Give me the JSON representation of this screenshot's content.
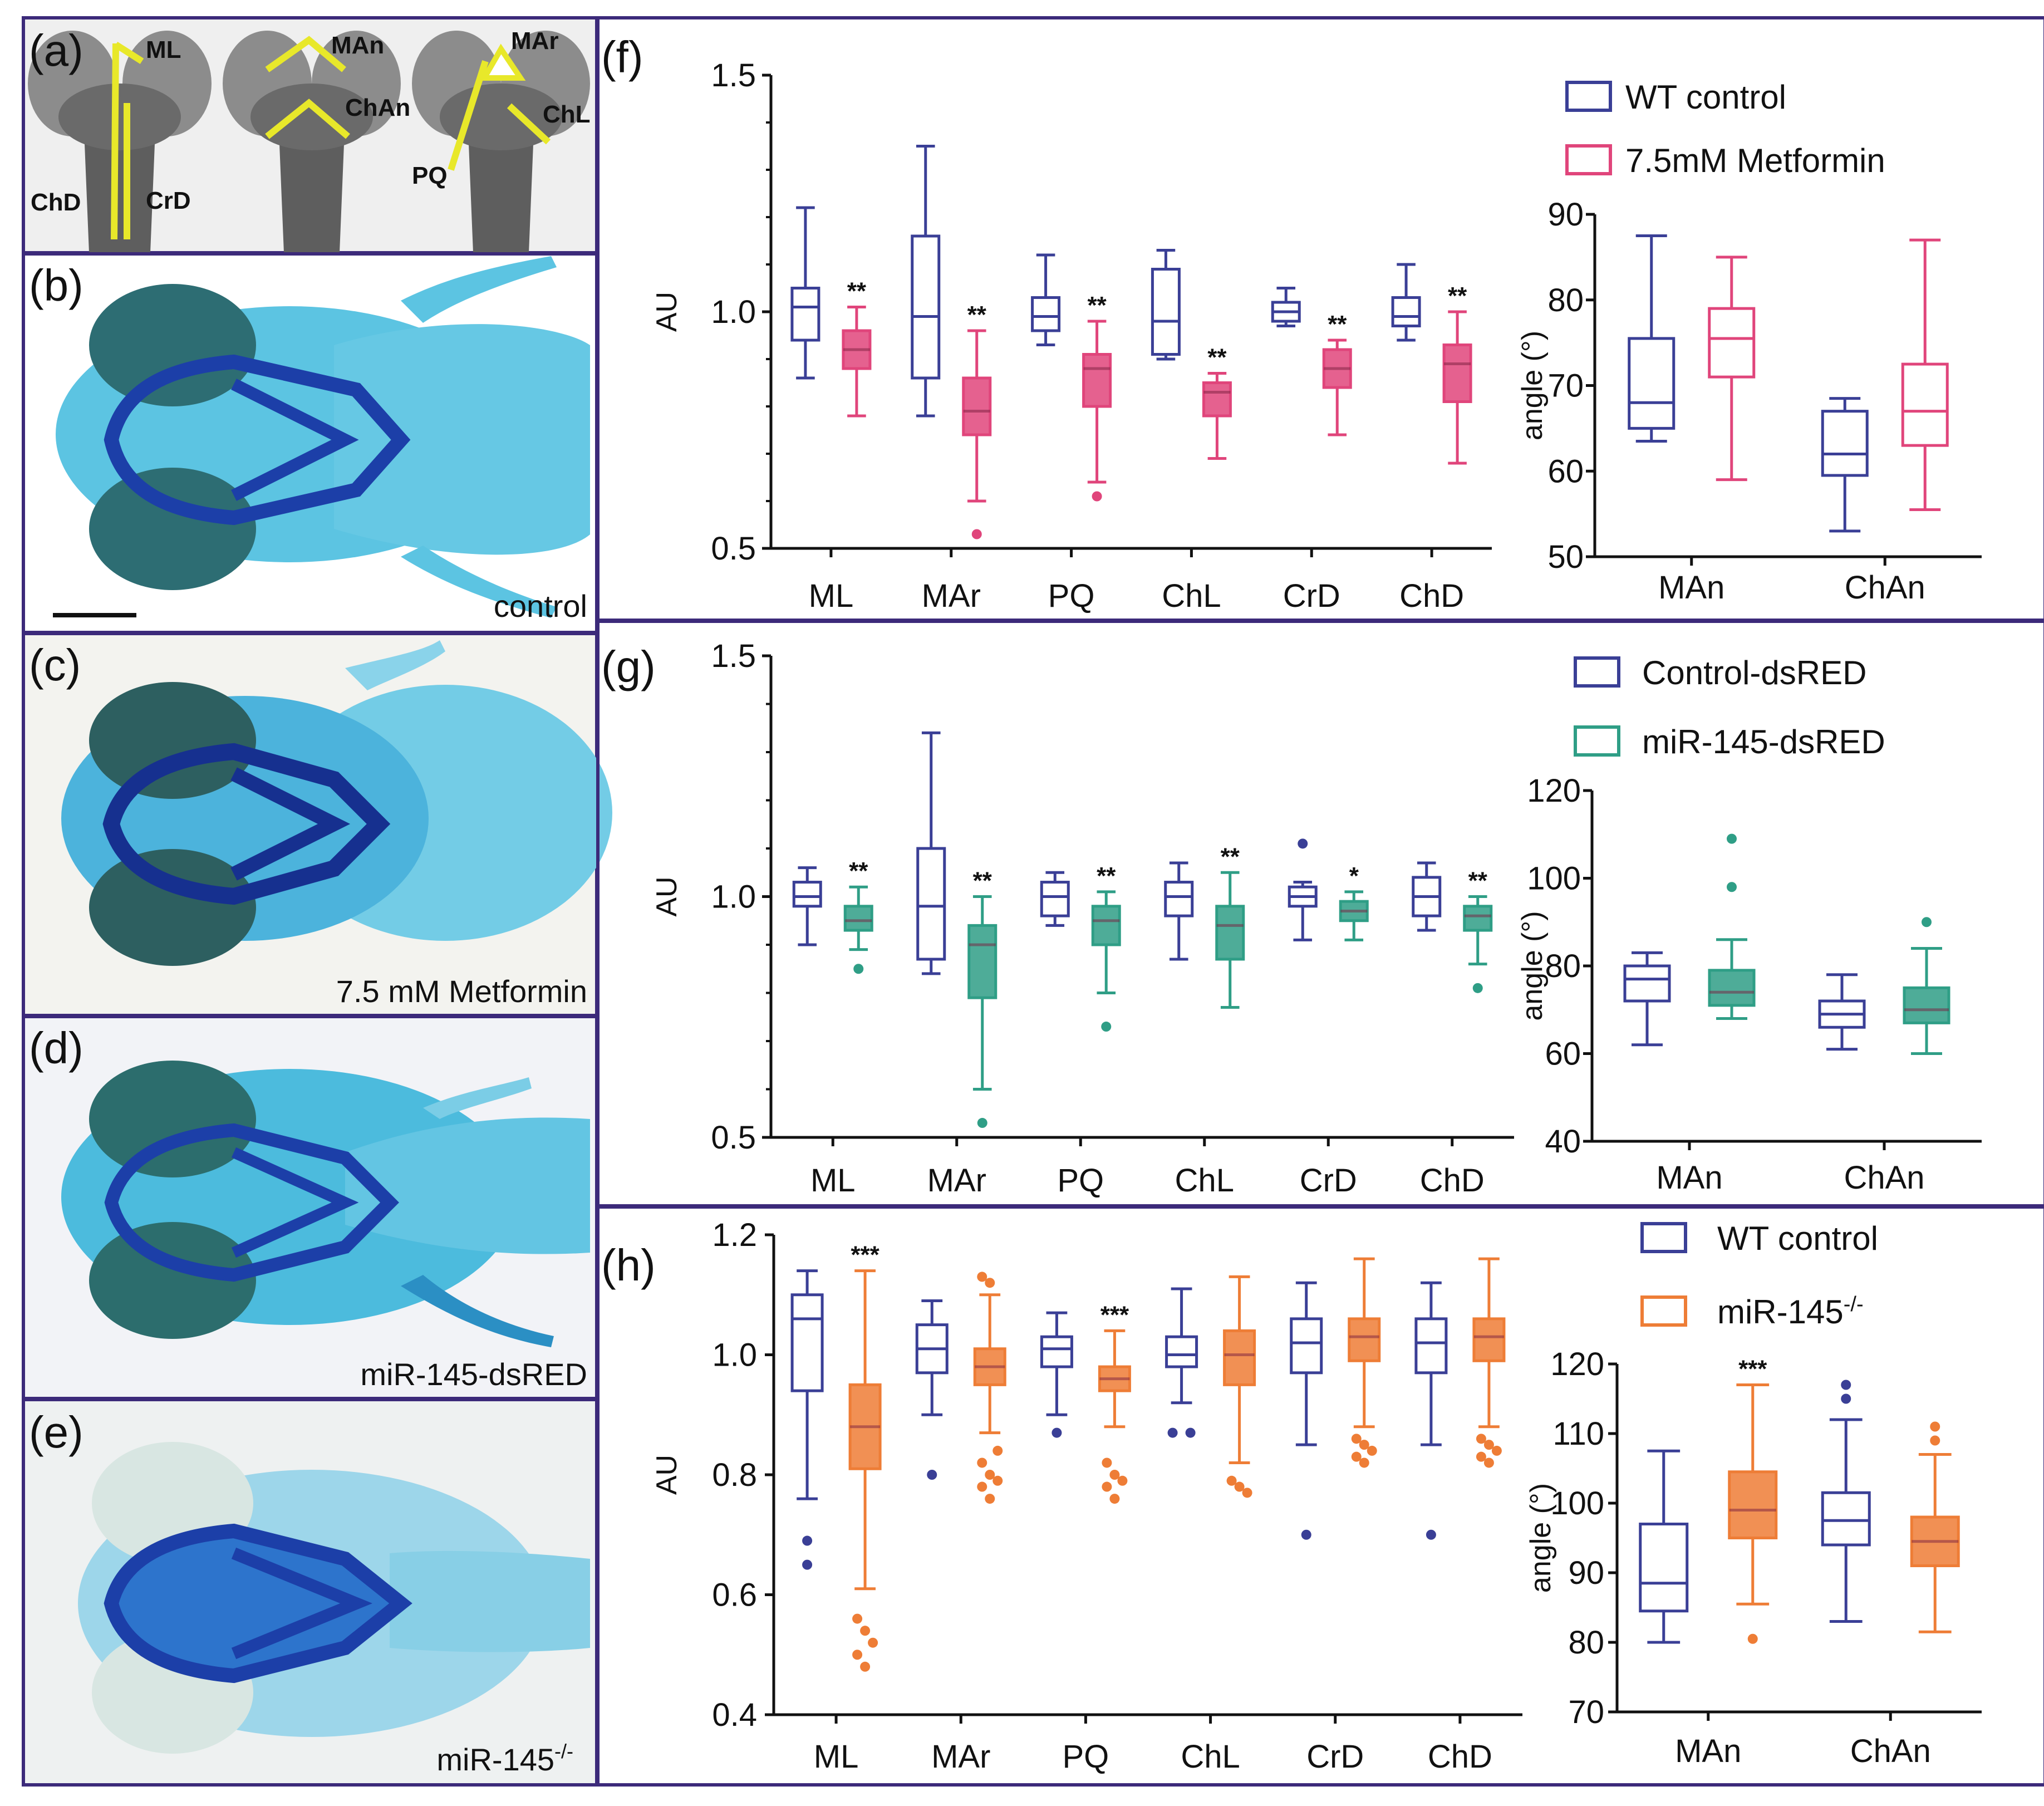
{
  "colors": {
    "navy": "#3a3f96",
    "pink": "#e0457b",
    "teal": "#2f9e86",
    "orange": "#ee7d36",
    "frame": "#3c2a7a",
    "cartilage": "#2ba6d6",
    "cartilageDark": "#1c3fa8"
  },
  "panels": {
    "a": {
      "label": "(a)",
      "jaw_labels": [
        "ML",
        "ChD",
        "CrD",
        "MAn",
        "ChAn",
        "MAr",
        "ChL",
        "PQ"
      ]
    },
    "b": {
      "label": "(b)",
      "caption": "control"
    },
    "c": {
      "label": "(c)",
      "caption": "7.5 mM Metformin"
    },
    "d": {
      "label": "(d)",
      "caption": "miR-145-dsRED"
    },
    "e": {
      "label": "(e)",
      "caption": "miR-145"
    }
  },
  "knockout_superscript": "-/-",
  "chart_data": [
    {
      "id": "f",
      "panel": "(f)",
      "type": "box",
      "categories": [
        "ML",
        "MAr",
        "PQ",
        "ChL",
        "CrD",
        "ChD"
      ],
      "ylabel": "AU",
      "ylim": [
        0.5,
        1.5
      ],
      "yticks": [
        "0.5",
        "1.0",
        "1.5"
      ],
      "legend": [
        "WT control",
        "7.5mM Metformin"
      ],
      "series": [
        {
          "name": "WT control",
          "boxes": [
            {
              "min": 0.86,
              "q1": 0.94,
              "med": 1.01,
              "q3": 1.05,
              "max": 1.22,
              "outliers": []
            },
            {
              "min": 0.78,
              "q1": 0.86,
              "med": 0.99,
              "q3": 1.16,
              "max": 1.35,
              "outliers": []
            },
            {
              "min": 0.93,
              "q1": 0.96,
              "med": 0.99,
              "q3": 1.03,
              "max": 1.12,
              "outliers": []
            },
            {
              "min": 0.9,
              "q1": 0.91,
              "med": 0.98,
              "q3": 1.09,
              "max": 1.13,
              "outliers": []
            },
            {
              "min": 0.97,
              "q1": 0.98,
              "med": 1.0,
              "q3": 1.02,
              "max": 1.05,
              "outliers": []
            },
            {
              "min": 0.94,
              "q1": 0.97,
              "med": 0.99,
              "q3": 1.03,
              "max": 1.1,
              "outliers": []
            }
          ]
        },
        {
          "name": "7.5mM Metformin",
          "boxes": [
            {
              "min": 0.78,
              "q1": 0.88,
              "med": 0.92,
              "q3": 0.96,
              "max": 1.01,
              "outliers": []
            },
            {
              "min": 0.6,
              "q1": 0.74,
              "med": 0.79,
              "q3": 0.86,
              "max": 0.96,
              "outliers": [
                0.53
              ]
            },
            {
              "min": 0.64,
              "q1": 0.8,
              "med": 0.88,
              "q3": 0.91,
              "max": 0.98,
              "outliers": [
                0.61
              ]
            },
            {
              "min": 0.69,
              "q1": 0.78,
              "med": 0.83,
              "q3": 0.85,
              "max": 0.87,
              "outliers": []
            },
            {
              "min": 0.74,
              "q1": 0.84,
              "med": 0.88,
              "q3": 0.92,
              "max": 0.94,
              "outliers": []
            },
            {
              "min": 0.68,
              "q1": 0.81,
              "med": 0.89,
              "q3": 0.93,
              "max": 1.0,
              "outliers": []
            }
          ]
        }
      ],
      "significance": [
        "**",
        "**",
        "**",
        "**",
        "**",
        "**"
      ]
    },
    {
      "id": "f-angle",
      "type": "box",
      "categories": [
        "MAn",
        "ChAn"
      ],
      "ylabel": "angle (°)",
      "ylim": [
        50,
        90
      ],
      "yticks": [
        "50",
        "60",
        "70",
        "80",
        "90"
      ],
      "series": [
        {
          "name": "WT control",
          "boxes": [
            {
              "min": 63.5,
              "q1": 65,
              "med": 68,
              "q3": 75.5,
              "max": 87.5,
              "outliers": []
            },
            {
              "min": 53,
              "q1": 59.5,
              "med": 62,
              "q3": 67,
              "max": 68.5,
              "outliers": []
            }
          ]
        },
        {
          "name": "7.5mM Metformin",
          "boxes": [
            {
              "min": 59,
              "q1": 71,
              "med": 75.5,
              "q3": 79,
              "max": 85,
              "outliers": []
            },
            {
              "min": 55.5,
              "q1": 63,
              "med": 67,
              "q3": 72.5,
              "max": 87,
              "outliers": []
            }
          ]
        }
      ],
      "significance": [
        "",
        ""
      ]
    },
    {
      "id": "g",
      "panel": "(g)",
      "type": "box",
      "categories": [
        "ML",
        "MAr",
        "PQ",
        "ChL",
        "CrD",
        "ChD"
      ],
      "ylabel": "AU",
      "ylim": [
        0.5,
        1.5
      ],
      "yticks": [
        "0.5",
        "1.0",
        "1.5"
      ],
      "legend": [
        "Control-dsRED",
        "miR-145-dsRED"
      ],
      "series": [
        {
          "name": "Control-dsRED",
          "boxes": [
            {
              "min": 0.9,
              "q1": 0.98,
              "med": 1.0,
              "q3": 1.03,
              "max": 1.06,
              "outliers": []
            },
            {
              "min": 0.84,
              "q1": 0.87,
              "med": 0.98,
              "q3": 1.1,
              "max": 1.34,
              "outliers": []
            },
            {
              "min": 0.94,
              "q1": 0.96,
              "med": 1.0,
              "q3": 1.03,
              "max": 1.05,
              "outliers": []
            },
            {
              "min": 0.87,
              "q1": 0.96,
              "med": 1.0,
              "q3": 1.03,
              "max": 1.07,
              "outliers": []
            },
            {
              "min": 0.91,
              "q1": 0.98,
              "med": 1.0,
              "q3": 1.02,
              "max": 1.03,
              "outliers": [
                1.11
              ]
            },
            {
              "min": 0.93,
              "q1": 0.96,
              "med": 1.0,
              "q3": 1.04,
              "max": 1.07,
              "outliers": []
            }
          ]
        },
        {
          "name": "miR-145-dsRED",
          "boxes": [
            {
              "min": 0.89,
              "q1": 0.93,
              "med": 0.95,
              "q3": 0.98,
              "max": 1.02,
              "outliers": [
                0.85
              ]
            },
            {
              "min": 0.6,
              "q1": 0.79,
              "med": 0.9,
              "q3": 0.94,
              "max": 1.0,
              "outliers": [
                0.53
              ]
            },
            {
              "min": 0.8,
              "q1": 0.9,
              "med": 0.95,
              "q3": 0.98,
              "max": 1.01,
              "outliers": [
                0.73
              ]
            },
            {
              "min": 0.77,
              "q1": 0.87,
              "med": 0.94,
              "q3": 0.98,
              "max": 1.05,
              "outliers": []
            },
            {
              "min": 0.91,
              "q1": 0.95,
              "med": 0.97,
              "q3": 0.99,
              "max": 1.01,
              "outliers": []
            },
            {
              "min": 0.86,
              "q1": 0.93,
              "med": 0.96,
              "q3": 0.98,
              "max": 1.0,
              "outliers": [
                0.81
              ]
            }
          ]
        }
      ],
      "significance": [
        "**",
        "**",
        "**",
        "**",
        "*",
        "**"
      ]
    },
    {
      "id": "g-angle",
      "type": "box",
      "categories": [
        "MAn",
        "ChAn"
      ],
      "ylabel": "angle (°)",
      "ylim": [
        40,
        120
      ],
      "yticks": [
        "40",
        "60",
        "80",
        "100",
        "120"
      ],
      "series": [
        {
          "name": "Control-dsRED",
          "boxes": [
            {
              "min": 62,
              "q1": 72,
              "med": 77,
              "q3": 80,
              "max": 83,
              "outliers": []
            },
            {
              "min": 61,
              "q1": 66,
              "med": 69,
              "q3": 72,
              "max": 78,
              "outliers": []
            }
          ]
        },
        {
          "name": "miR-145-dsRED",
          "boxes": [
            {
              "min": 68,
              "q1": 71,
              "med": 74,
              "q3": 79,
              "max": 86,
              "outliers": [
                98,
                109
              ]
            },
            {
              "min": 60,
              "q1": 67,
              "med": 70,
              "q3": 75,
              "max": 84,
              "outliers": [
                90
              ]
            }
          ]
        }
      ],
      "significance": [
        "",
        ""
      ]
    },
    {
      "id": "h",
      "panel": "(h)",
      "type": "box",
      "categories": [
        "ML",
        "MAr",
        "PQ",
        "ChL",
        "CrD",
        "ChD"
      ],
      "ylabel": "AU",
      "ylim": [
        0.4,
        1.2
      ],
      "yticks": [
        "0.4",
        "0.6",
        "0.8",
        "1.0",
        "1.2"
      ],
      "legend": [
        "WT control",
        "miR-145"
      ],
      "series": [
        {
          "name": "WT control",
          "boxes": [
            {
              "min": 0.76,
              "q1": 0.94,
              "med": 1.06,
              "q3": 1.1,
              "max": 1.14,
              "outliers": [
                0.69,
                0.65
              ]
            },
            {
              "min": 0.9,
              "q1": 0.97,
              "med": 1.01,
              "q3": 1.05,
              "max": 1.09,
              "outliers": [
                0.8
              ]
            },
            {
              "min": 0.9,
              "q1": 0.98,
              "med": 1.01,
              "q3": 1.03,
              "max": 1.07,
              "outliers": [
                0.87
              ]
            },
            {
              "min": 0.92,
              "q1": 0.98,
              "med": 1.0,
              "q3": 1.03,
              "max": 1.11,
              "outliers": [
                0.87,
                0.87
              ]
            },
            {
              "min": 0.85,
              "q1": 0.97,
              "med": 1.02,
              "q3": 1.06,
              "max": 1.12,
              "outliers": [
                0.7
              ]
            },
            {
              "min": 0.85,
              "q1": 0.97,
              "med": 1.02,
              "q3": 1.06,
              "max": 1.12,
              "outliers": [
                0.7
              ]
            }
          ]
        },
        {
          "name": "miR-145",
          "boxes": [
            {
              "min": 0.61,
              "q1": 0.81,
              "med": 0.88,
              "q3": 0.95,
              "max": 1.14,
              "outliers": [
                0.56,
                0.54,
                0.52,
                0.5,
                0.48
              ]
            },
            {
              "min": 0.87,
              "q1": 0.95,
              "med": 0.98,
              "q3": 1.01,
              "max": 1.1,
              "outliers": [
                1.13,
                1.12,
                0.84,
                0.82,
                0.8,
                0.79,
                0.78,
                0.76
              ]
            },
            {
              "min": 0.88,
              "q1": 0.94,
              "med": 0.96,
              "q3": 0.98,
              "max": 1.04,
              "outliers": [
                0.82,
                0.8,
                0.79,
                0.78,
                0.76
              ]
            },
            {
              "min": 0.82,
              "q1": 0.95,
              "med": 1.0,
              "q3": 1.04,
              "max": 1.13,
              "outliers": [
                0.79,
                0.78,
                0.77
              ]
            },
            {
              "min": 0.88,
              "q1": 0.99,
              "med": 1.03,
              "q3": 1.06,
              "max": 1.16,
              "outliers": [
                0.86,
                0.85,
                0.84,
                0.83,
                0.82
              ]
            },
            {
              "min": 0.88,
              "q1": 0.99,
              "med": 1.03,
              "q3": 1.06,
              "max": 1.16,
              "outliers": [
                0.86,
                0.85,
                0.84,
                0.83,
                0.82
              ]
            }
          ]
        }
      ],
      "significance": [
        "***",
        "",
        "***",
        "",
        "",
        ""
      ]
    },
    {
      "id": "h-angle",
      "type": "box",
      "categories": [
        "MAn",
        "ChAn"
      ],
      "ylabel": "angle (°)",
      "ylim": [
        70,
        120
      ],
      "yticks": [
        "70",
        "80",
        "90",
        "100",
        "110",
        "120"
      ],
      "series": [
        {
          "name": "WT control",
          "boxes": [
            {
              "min": 80,
              "q1": 84.5,
              "med": 88.5,
              "q3": 97,
              "max": 107.5,
              "outliers": []
            },
            {
              "min": 83,
              "q1": 94,
              "med": 97.5,
              "q3": 101.5,
              "max": 112,
              "outliers": [
                115,
                117
              ]
            }
          ]
        },
        {
          "name": "miR-145",
          "boxes": [
            {
              "min": 85.5,
              "q1": 95,
              "med": 99,
              "q3": 104.5,
              "max": 117,
              "outliers": [
                80.5
              ]
            },
            {
              "min": 81.5,
              "q1": 91,
              "med": 94.5,
              "q3": 98,
              "max": 107,
              "outliers": [
                109,
                111
              ]
            }
          ]
        }
      ],
      "significance": [
        "***",
        ""
      ]
    }
  ]
}
